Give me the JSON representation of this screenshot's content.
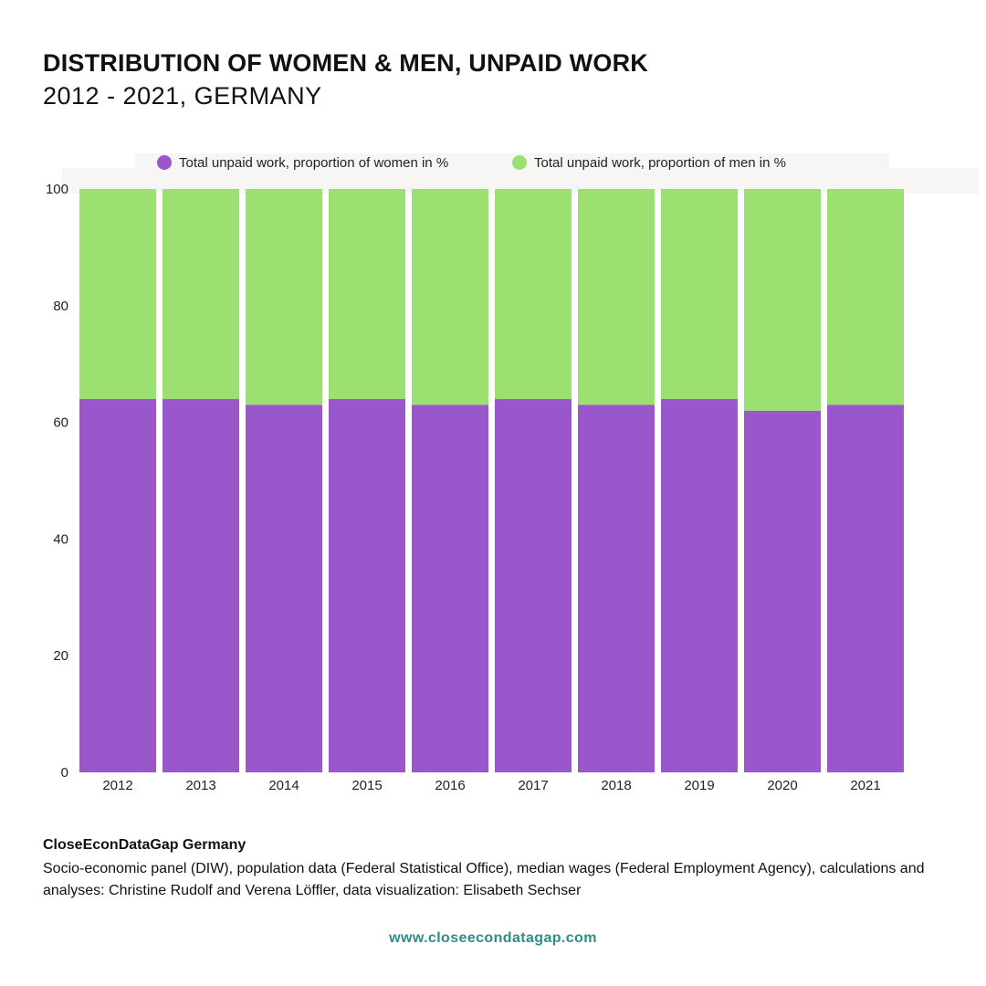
{
  "header": {
    "title": "DISTRIBUTION OF WOMEN & MEN, UNPAID WORK",
    "subtitle": "2012 - 2021, GERMANY"
  },
  "colors": {
    "women": "#9a57cc",
    "men": "#9be070",
    "url": "#2a8f8a"
  },
  "chart_data": {
    "type": "bar",
    "stacked": true,
    "categories": [
      "2012",
      "2013",
      "2014",
      "2015",
      "2016",
      "2017",
      "2018",
      "2019",
      "2020",
      "2021"
    ],
    "series": [
      {
        "name": "Total unpaid work, proportion of women in %",
        "values": [
          64,
          64,
          63,
          64,
          63,
          64,
          63,
          64,
          62,
          63
        ]
      },
      {
        "name": "Total unpaid work, proportion of men in %",
        "values": [
          36,
          36,
          37,
          36,
          37,
          36,
          37,
          36,
          38,
          37
        ]
      }
    ],
    "yticks": [
      "0",
      "20",
      "40",
      "60",
      "80",
      "100"
    ],
    "ylim": [
      0,
      100
    ],
    "legend_position": "top",
    "grid": false
  },
  "footer": {
    "org": "CloseEconDataGap Germany",
    "source": "Socio-economic panel (DIW), population data (Federal Statistical Office), median wages (Federal Employment Agency), calculations and analyses: Christine Rudolf and Verena Löffler, data visualization: Elisabeth Sechser",
    "url": "www.closeecondatagap.com"
  }
}
